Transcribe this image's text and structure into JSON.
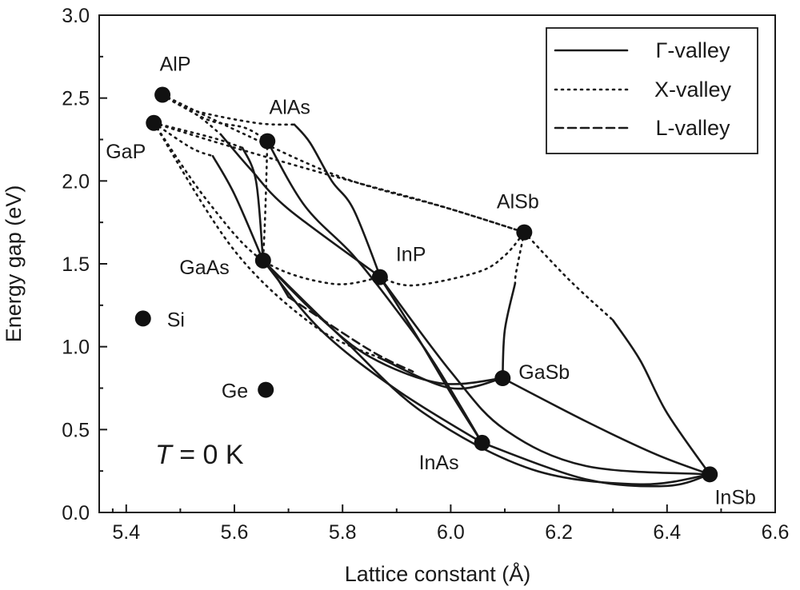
{
  "chart_data": {
    "type": "scatter",
    "title": "",
    "xlabel": "Lattice constant (Å)",
    "ylabel": "Energy gap (eV)",
    "xlim": [
      5.35,
      6.6
    ],
    "ylim": [
      0,
      3.0
    ],
    "xticks": [
      "5.4",
      "5.6",
      "5.8",
      "6.0",
      "6.2",
      "6.4",
      "6.6"
    ],
    "yticks": [
      "0.0",
      "0.5",
      "1.0",
      "1.5",
      "2.0",
      "2.5",
      "3.0"
    ],
    "grid": false,
    "legend_position": "top-right",
    "legend": [
      {
        "label": "Γ-valley",
        "style": "solid"
      },
      {
        "label": "X-valley",
        "style": "dotted"
      },
      {
        "label": "L-valley",
        "style": "dashed"
      }
    ],
    "annotation": {
      "italic": "T",
      "rest": " = 0 K"
    },
    "points": [
      {
        "label": "AlP",
        "x": 5.467,
        "y": 2.52
      },
      {
        "label": "GaP",
        "x": 5.451,
        "y": 2.35
      },
      {
        "label": "AlAs",
        "x": 5.661,
        "y": 2.24
      },
      {
        "label": "AlSb",
        "x": 6.136,
        "y": 1.69
      },
      {
        "label": "InP",
        "x": 5.869,
        "y": 1.42
      },
      {
        "label": "GaAs",
        "x": 5.653,
        "y": 1.52
      },
      {
        "label": "Si",
        "x": 5.431,
        "y": 1.17
      },
      {
        "label": "GaSb",
        "x": 6.096,
        "y": 0.81
      },
      {
        "label": "Ge",
        "x": 5.658,
        "y": 0.74
      },
      {
        "label": "InAs",
        "x": 6.058,
        "y": 0.42
      },
      {
        "label": "InSb",
        "x": 6.479,
        "y": 0.23
      }
    ],
    "curves": [
      {
        "style": "dotted",
        "pts": [
          [
            5.467,
            2.52
          ],
          [
            5.52,
            2.43
          ],
          [
            5.64,
            2.35
          ],
          [
            5.711,
            2.34
          ]
        ]
      },
      {
        "style": "solid",
        "pts": [
          [
            5.711,
            2.34
          ],
          [
            5.74,
            2.23
          ],
          [
            5.78,
            2.0
          ],
          [
            5.82,
            1.83
          ],
          [
            5.87,
            1.42
          ]
        ]
      },
      {
        "style": "dotted",
        "pts": [
          [
            5.467,
            2.52
          ],
          [
            5.55,
            2.37
          ],
          [
            5.62,
            2.32
          ],
          [
            5.661,
            2.24
          ]
        ]
      },
      {
        "style": "dotted",
        "pts": [
          [
            5.467,
            2.52
          ],
          [
            5.62,
            2.28
          ],
          [
            5.8,
            2.02
          ],
          [
            6.0,
            1.83
          ],
          [
            6.136,
            1.69
          ]
        ]
      },
      {
        "style": "dotted",
        "pts": [
          [
            5.451,
            2.35
          ],
          [
            5.58,
            2.22
          ],
          [
            5.76,
            2.05
          ],
          [
            5.97,
            1.86
          ],
          [
            6.136,
            1.69
          ]
        ]
      },
      {
        "style": "dotted",
        "pts": [
          [
            5.451,
            2.35
          ],
          [
            5.56,
            2.26
          ],
          [
            5.615,
            2.2
          ]
        ]
      },
      {
        "style": "solid",
        "pts": [
          [
            5.615,
            2.2
          ],
          [
            5.64,
            2.0
          ],
          [
            5.653,
            1.52
          ]
        ]
      },
      {
        "style": "dotted",
        "pts": [
          [
            5.661,
            2.24
          ],
          [
            5.657,
            1.8
          ],
          [
            5.653,
            1.52
          ]
        ]
      },
      {
        "style": "dotted",
        "pts": [
          [
            5.467,
            2.52
          ],
          [
            5.53,
            2.4
          ],
          [
            5.575,
            2.28
          ]
        ]
      },
      {
        "style": "solid",
        "pts": [
          [
            5.575,
            2.28
          ],
          [
            5.63,
            2.07
          ],
          [
            5.7,
            1.83
          ],
          [
            5.87,
            1.42
          ]
        ]
      },
      {
        "style": "dotted",
        "pts": [
          [
            5.451,
            2.35
          ],
          [
            5.52,
            2.2
          ],
          [
            5.56,
            2.15
          ]
        ]
      },
      {
        "style": "solid",
        "pts": [
          [
            5.56,
            2.15
          ],
          [
            5.6,
            1.92
          ],
          [
            5.653,
            1.52
          ]
        ]
      },
      {
        "style": "dotted",
        "pts": [
          [
            5.451,
            2.35
          ],
          [
            5.55,
            1.88
          ],
          [
            5.653,
            1.52
          ],
          [
            5.78,
            1.38
          ],
          [
            5.87,
            1.42
          ]
        ]
      },
      {
        "style": "dotted",
        "pts": [
          [
            5.869,
            1.42
          ],
          [
            5.93,
            1.37
          ],
          [
            6.05,
            1.45
          ],
          [
            6.1,
            1.55
          ],
          [
            6.136,
            1.69
          ]
        ]
      },
      {
        "style": "dotted",
        "pts": [
          [
            5.451,
            2.35
          ],
          [
            5.6,
            1.58
          ],
          [
            5.75,
            1.12
          ],
          [
            5.87,
            0.93
          ]
        ]
      },
      {
        "style": "solid",
        "pts": [
          [
            5.87,
            0.93
          ],
          [
            6.0,
            0.75
          ],
          [
            6.096,
            0.81
          ]
        ]
      },
      {
        "style": "solid",
        "pts": [
          [
            5.653,
            1.52
          ],
          [
            5.75,
            1.2
          ],
          [
            5.85,
            0.94
          ],
          [
            5.98,
            0.78
          ],
          [
            6.096,
            0.81
          ]
        ]
      },
      {
        "style": "solid",
        "pts": [
          [
            5.661,
            2.24
          ],
          [
            5.73,
            1.85
          ],
          [
            5.82,
            1.55
          ],
          [
            5.9,
            1.22
          ],
          [
            5.97,
            0.9
          ],
          [
            6.058,
            0.42
          ]
        ]
      },
      {
        "style": "solid",
        "pts": [
          [
            5.869,
            1.42
          ],
          [
            5.94,
            1.05
          ],
          [
            6.0,
            0.72
          ],
          [
            6.058,
            0.42
          ]
        ]
      },
      {
        "style": "solid",
        "pts": [
          [
            5.653,
            1.52
          ],
          [
            5.76,
            1.1
          ],
          [
            5.9,
            0.74
          ],
          [
            6.058,
            0.42
          ]
        ]
      },
      {
        "style": "dotted",
        "pts": [
          [
            6.136,
            1.69
          ],
          [
            6.121,
            1.45
          ],
          [
            6.119,
            1.38
          ]
        ]
      },
      {
        "style": "solid",
        "pts": [
          [
            6.119,
            1.38
          ],
          [
            6.1,
            1.1
          ],
          [
            6.096,
            0.81
          ]
        ]
      },
      {
        "style": "dotted",
        "pts": [
          [
            6.136,
            1.69
          ],
          [
            6.22,
            1.4
          ],
          [
            6.3,
            1.16
          ]
        ]
      },
      {
        "style": "solid",
        "pts": [
          [
            6.3,
            1.16
          ],
          [
            6.35,
            0.92
          ],
          [
            6.4,
            0.6
          ],
          [
            6.479,
            0.23
          ]
        ]
      },
      {
        "style": "solid",
        "pts": [
          [
            6.096,
            0.81
          ],
          [
            6.25,
            0.55
          ],
          [
            6.38,
            0.35
          ],
          [
            6.479,
            0.23
          ]
        ]
      },
      {
        "style": "solid",
        "pts": [
          [
            6.058,
            0.42
          ],
          [
            6.25,
            0.2
          ],
          [
            6.4,
            0.16
          ],
          [
            6.479,
            0.23
          ]
        ]
      },
      {
        "style": "solid",
        "pts": [
          [
            5.653,
            1.52
          ],
          [
            5.8,
            1.05
          ],
          [
            5.95,
            0.6
          ],
          [
            6.15,
            0.26
          ],
          [
            6.35,
            0.17
          ],
          [
            6.479,
            0.23
          ]
        ]
      },
      {
        "style": "solid",
        "pts": [
          [
            5.869,
            1.42
          ],
          [
            6.0,
            0.85
          ],
          [
            6.1,
            0.5
          ],
          [
            6.25,
            0.28
          ],
          [
            6.479,
            0.23
          ]
        ]
      },
      {
        "style": "solid",
        "pts": [
          [
            5.653,
            1.52
          ],
          [
            5.67,
            1.46
          ],
          [
            5.7,
            1.3
          ]
        ]
      },
      {
        "style": "dashed",
        "pts": [
          [
            5.7,
            1.3
          ],
          [
            5.85,
            0.98
          ],
          [
            5.93,
            0.85
          ]
        ]
      }
    ]
  }
}
